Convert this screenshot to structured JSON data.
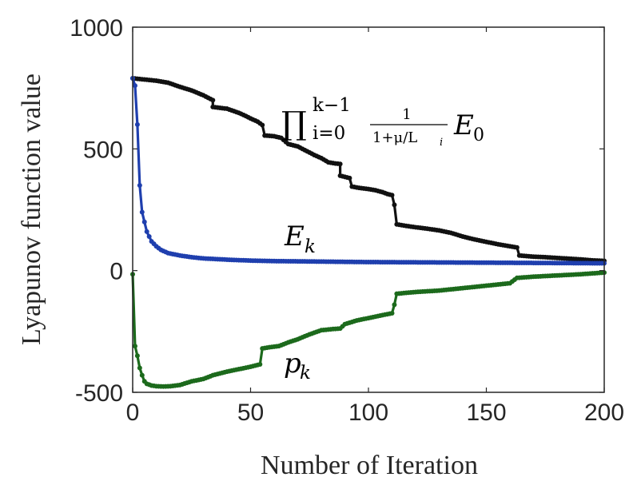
{
  "chart_data": {
    "type": "line",
    "xlabel": "Number of Iteration",
    "ylabel": "Lyapunov function value",
    "xlim": [
      0,
      200
    ],
    "ylim": [
      -500,
      1000
    ],
    "xticks": [
      0,
      50,
      100,
      150,
      200
    ],
    "yticks": [
      1000,
      500,
      0,
      -500
    ],
    "xtick_labels": [
      "0",
      "50",
      "100",
      "150",
      "200"
    ],
    "ytick_labels": [
      "1000",
      "500",
      "0",
      "-500"
    ],
    "grid": false,
    "annotations": {
      "product_bound": {
        "prod": "∏",
        "sup": "k−1",
        "sub": "i=0",
        "num": "1",
        "den": "1+μ/L",
        "den_sub": "i",
        "main": "E",
        "main_sub": "0"
      },
      "energy": {
        "main": "E",
        "sub": "k"
      },
      "potential": {
        "main": "p",
        "sub": "k"
      }
    },
    "series": [
      {
        "name": "prod_bound",
        "color": "#111111",
        "points": [
          [
            0,
            790
          ],
          [
            5,
            785
          ],
          [
            10,
            780
          ],
          [
            15,
            772
          ],
          [
            20,
            755
          ],
          [
            25,
            740
          ],
          [
            30,
            720
          ],
          [
            34,
            700
          ],
          [
            34,
            672
          ],
          [
            40,
            665
          ],
          [
            45,
            648
          ],
          [
            48,
            635
          ],
          [
            50,
            625
          ],
          [
            53,
            612
          ],
          [
            55,
            598
          ],
          [
            56,
            555
          ],
          [
            60,
            552
          ],
          [
            63,
            545
          ],
          [
            66,
            520
          ],
          [
            70,
            510
          ],
          [
            73,
            495
          ],
          [
            75,
            485
          ],
          [
            77,
            475
          ],
          [
            80,
            462
          ],
          [
            83,
            445
          ],
          [
            86,
            440
          ],
          [
            88,
            438
          ],
          [
            88,
            390
          ],
          [
            90,
            385
          ],
          [
            92,
            380
          ],
          [
            93,
            345
          ],
          [
            96,
            340
          ],
          [
            100,
            335
          ],
          [
            103,
            330
          ],
          [
            106,
            322
          ],
          [
            108,
            315
          ],
          [
            110,
            310
          ],
          [
            111,
            270
          ],
          [
            112,
            190
          ],
          [
            115,
            185
          ],
          [
            120,
            178
          ],
          [
            125,
            172
          ],
          [
            130,
            165
          ],
          [
            135,
            155
          ],
          [
            140,
            140
          ],
          [
            145,
            128
          ],
          [
            150,
            118
          ],
          [
            155,
            108
          ],
          [
            160,
            100
          ],
          [
            163,
            95
          ],
          [
            164,
            62
          ],
          [
            170,
            57
          ],
          [
            175,
            55
          ],
          [
            180,
            52
          ],
          [
            185,
            49
          ],
          [
            190,
            46
          ],
          [
            195,
            42
          ],
          [
            200,
            40
          ]
        ]
      },
      {
        "name": "E_k",
        "color": "#1f3fae",
        "points": [
          [
            0,
            790
          ],
          [
            1,
            760
          ],
          [
            2,
            600
          ],
          [
            3,
            350
          ],
          [
            4,
            240
          ],
          [
            5,
            200
          ],
          [
            6,
            160
          ],
          [
            7,
            140
          ],
          [
            8,
            120
          ],
          [
            10,
            100
          ],
          [
            12,
            85
          ],
          [
            15,
            72
          ],
          [
            20,
            62
          ],
          [
            25,
            55
          ],
          [
            30,
            50
          ],
          [
            40,
            45
          ],
          [
            50,
            41
          ],
          [
            60,
            39
          ],
          [
            70,
            38
          ],
          [
            80,
            37
          ],
          [
            100,
            35
          ],
          [
            120,
            34
          ],
          [
            140,
            33
          ],
          [
            160,
            32
          ],
          [
            180,
            31
          ],
          [
            200,
            30
          ]
        ]
      },
      {
        "name": "p_k",
        "color": "#1c6a1c",
        "points": [
          [
            0,
            -15
          ],
          [
            1,
            -310
          ],
          [
            2,
            -350
          ],
          [
            3,
            -400
          ],
          [
            4,
            -430
          ],
          [
            5,
            -455
          ],
          [
            6,
            -465
          ],
          [
            8,
            -472
          ],
          [
            10,
            -475
          ],
          [
            13,
            -476
          ],
          [
            16,
            -475
          ],
          [
            20,
            -470
          ],
          [
            25,
            -455
          ],
          [
            30,
            -445
          ],
          [
            34,
            -430
          ],
          [
            40,
            -415
          ],
          [
            45,
            -405
          ],
          [
            50,
            -395
          ],
          [
            54,
            -385
          ],
          [
            55,
            -320
          ],
          [
            58,
            -315
          ],
          [
            62,
            -310
          ],
          [
            66,
            -295
          ],
          [
            70,
            -282
          ],
          [
            75,
            -262
          ],
          [
            80,
            -245
          ],
          [
            85,
            -240
          ],
          [
            88,
            -238
          ],
          [
            90,
            -220
          ],
          [
            95,
            -205
          ],
          [
            100,
            -195
          ],
          [
            105,
            -185
          ],
          [
            110,
            -175
          ],
          [
            111,
            -140
          ],
          [
            112,
            -95
          ],
          [
            120,
            -88
          ],
          [
            130,
            -82
          ],
          [
            140,
            -72
          ],
          [
            150,
            -62
          ],
          [
            160,
            -52
          ],
          [
            163,
            -30
          ],
          [
            170,
            -25
          ],
          [
            180,
            -20
          ],
          [
            190,
            -15
          ],
          [
            200,
            -8
          ]
        ]
      }
    ]
  }
}
